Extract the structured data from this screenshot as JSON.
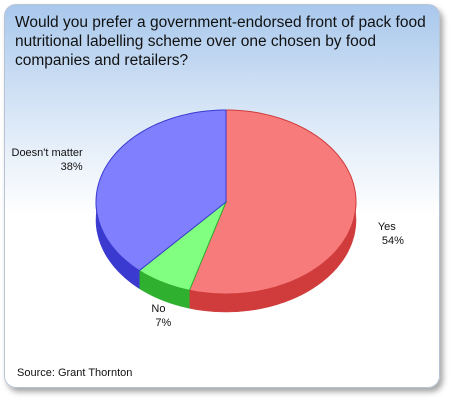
{
  "chart_data": {
    "type": "pie3d",
    "title": "Would you prefer a government-endorsed front of pack food nutritional labelling scheme over one chosen by food companies and retailers?",
    "categories": [
      "Yes",
      "No",
      "Doesn't matter"
    ],
    "values": [
      54,
      7,
      38
    ],
    "value_labels": [
      "54%",
      "7%",
      "38%"
    ],
    "colors": [
      "#f77b7b",
      "#80ff80",
      "#8080ff"
    ],
    "side_colors": [
      "#d03c3c",
      "#2fb02f",
      "#3a3ad0"
    ],
    "source": "Source: Grant Thornton"
  }
}
